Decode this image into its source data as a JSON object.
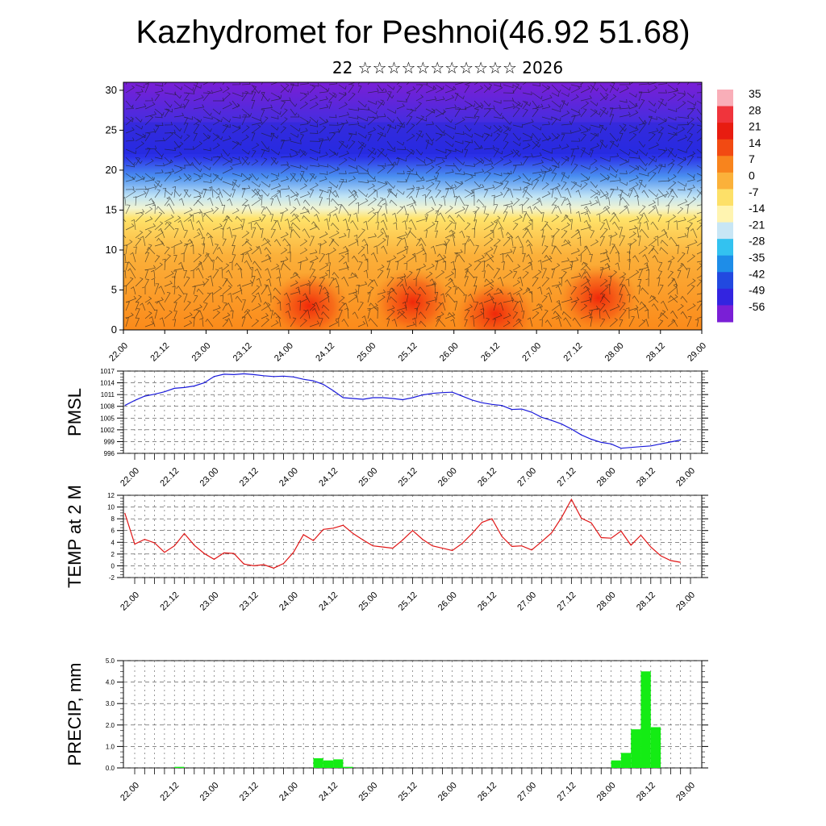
{
  "header": {
    "title": "Kazhydromet for Peshnoi(46.92 51.68)",
    "subtitle": "22 ☆☆☆☆☆☆☆☆☆☆☆ 2026"
  },
  "time_labels": [
    "22.00",
    "22.12",
    "23.00",
    "23.12",
    "24.00",
    "24.12",
    "25.00",
    "25.12",
    "26.00",
    "26.12",
    "27.00",
    "27.12",
    "28.00",
    "28.12",
    "29.00"
  ],
  "chart_data": [
    {
      "type": "heatmap",
      "title": "",
      "x": [
        "22.00",
        "22.12",
        "23.00",
        "23.12",
        "24.00",
        "24.12",
        "25.00",
        "25.12",
        "26.00",
        "26.12",
        "27.00",
        "27.12",
        "28.00",
        "28.12",
        "29.00"
      ],
      "y_ticks": [
        0,
        5,
        10,
        15,
        20,
        25,
        30
      ],
      "ylim": [
        0,
        31
      ],
      "colorbar_labels": [
        "35",
        "28",
        "21",
        "14",
        "7",
        "0",
        "-7",
        "-14",
        "-21",
        "-28",
        "-35",
        "-42",
        "-49",
        "-56"
      ],
      "colors": {
        "top": "#7a1fd6",
        "blue": "#2a30e8",
        "light": "#cfe8f5",
        "yellow": "#ffe36a",
        "orange": "#fb9a20",
        "red": "#ef2a10"
      },
      "warm_spots": [
        {
          "x": "24.06",
          "y": 3
        },
        {
          "x": "25.12",
          "y": 3.5
        },
        {
          "x": "26.12",
          "y": 2
        },
        {
          "x": "27.18",
          "y": 4
        }
      ],
      "wind_barbs": true
    },
    {
      "type": "line",
      "ylabel": "PMSL",
      "y_ticks": [
        "996",
        "999",
        "1002",
        "1005",
        "1008",
        "1011",
        "1014",
        "1017"
      ],
      "ylim": [
        996,
        1017
      ],
      "color": "#1a1adb",
      "x": [
        "21.21",
        "22.00",
        "22.03",
        "22.06",
        "22.09",
        "22.12",
        "22.15",
        "22.18",
        "22.21",
        "23.00",
        "23.03",
        "23.06",
        "23.09",
        "23.12",
        "23.15",
        "23.18",
        "23.21",
        "24.00",
        "24.03",
        "24.06",
        "24.09",
        "24.12",
        "24.15",
        "24.18",
        "24.21",
        "25.00",
        "25.03",
        "25.06",
        "25.09",
        "25.12",
        "25.15",
        "25.18",
        "25.21",
        "26.00",
        "26.03",
        "26.06",
        "26.09",
        "26.12",
        "26.15",
        "26.18",
        "26.21",
        "27.00",
        "27.03",
        "27.06",
        "27.09",
        "27.12",
        "27.15",
        "27.18",
        "27.21",
        "28.00",
        "28.03",
        "28.06",
        "28.09",
        "28.12",
        "28.15",
        "28.18",
        "28.21"
      ],
      "values": [
        1008.2,
        1009.5,
        1010.6,
        1011.1,
        1011.7,
        1012.6,
        1012.8,
        1013.2,
        1014.0,
        1015.6,
        1016.2,
        1016.1,
        1016.3,
        1016.1,
        1015.8,
        1015.6,
        1015.7,
        1015.5,
        1014.9,
        1014.5,
        1013.6,
        1012.0,
        1010.2,
        1010.0,
        1009.8,
        1010.2,
        1010.2,
        1010.0,
        1009.7,
        1010.2,
        1010.9,
        1011.3,
        1011.5,
        1011.6,
        1010.6,
        1009.6,
        1008.9,
        1008.5,
        1008.2,
        1007.2,
        1007.3,
        1006.5,
        1005.2,
        1004.4,
        1003.5,
        1002.2,
        1000.7,
        999.6,
        998.8,
        998.4,
        997.3,
        997.5,
        997.7,
        997.9,
        998.4,
        998.9,
        999.4
      ]
    },
    {
      "type": "line",
      "ylabel": "TEMP at 2 M",
      "y_ticks": [
        "-2",
        "0",
        "2",
        "4",
        "6",
        "8",
        "10",
        "12"
      ],
      "ylim": [
        -2,
        12
      ],
      "color": "#e01515",
      "x": [
        "21.21",
        "22.00",
        "22.03",
        "22.06",
        "22.09",
        "22.12",
        "22.15",
        "22.18",
        "22.21",
        "23.00",
        "23.03",
        "23.06",
        "23.09",
        "23.12",
        "23.15",
        "23.18",
        "23.21",
        "24.00",
        "24.03",
        "24.06",
        "24.09",
        "24.12",
        "24.15",
        "24.18",
        "24.21",
        "25.00",
        "25.03",
        "25.06",
        "25.09",
        "25.12",
        "25.15",
        "25.18",
        "25.21",
        "26.00",
        "26.03",
        "26.06",
        "26.09",
        "26.12",
        "26.15",
        "26.18",
        "26.21",
        "27.00",
        "27.03",
        "27.06",
        "27.09",
        "27.12",
        "27.15",
        "27.18",
        "27.21",
        "28.00",
        "28.03",
        "28.06",
        "28.09",
        "28.12",
        "28.15",
        "28.18",
        "28.21"
      ],
      "values": [
        9.0,
        3.7,
        4.5,
        3.9,
        2.3,
        3.4,
        5.5,
        3.5,
        2.1,
        1.1,
        2.2,
        2.1,
        0.3,
        0.0,
        0.2,
        -0.4,
        0.4,
        2.3,
        5.3,
        4.3,
        6.2,
        6.4,
        6.9,
        5.5,
        4.4,
        3.4,
        3.2,
        3.0,
        4.4,
        6.0,
        4.5,
        3.4,
        3.0,
        2.6,
        3.8,
        5.5,
        7.4,
        8.0,
        5.0,
        3.3,
        3.4,
        2.7,
        4.1,
        5.6,
        8.2,
        11.3,
        8.1,
        7.3,
        4.8,
        4.7,
        5.9,
        3.5,
        5.2,
        3.2,
        1.7,
        0.9,
        0.6
      ]
    },
    {
      "type": "bar",
      "ylabel": "PRECIP, mm",
      "y_ticks": [
        "0.0",
        "1.0",
        "2.0",
        "3.0",
        "4.0",
        "5.0"
      ],
      "ylim": [
        0,
        5
      ],
      "color": "#14ec14",
      "x": [
        "22.15",
        "24.09",
        "24.12",
        "24.15",
        "24.18",
        "28.03",
        "28.06",
        "28.09",
        "28.12",
        "28.15"
      ],
      "values": [
        0.05,
        0.45,
        0.35,
        0.4,
        0.05,
        0.35,
        0.7,
        1.8,
        4.5,
        1.9
      ]
    }
  ]
}
